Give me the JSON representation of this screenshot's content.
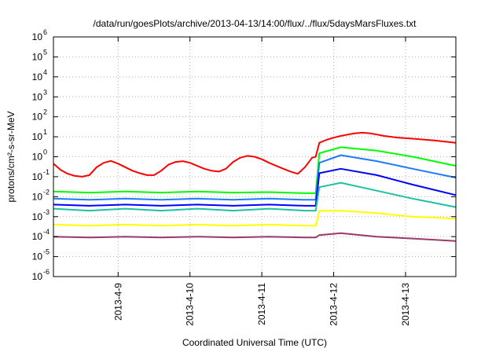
{
  "chart_data": {
    "type": "line",
    "title": "/data/run/goesPlots/archive/2013-04-13/14:00/flux/../flux/5daysMarsFluxes.txt",
    "xlabel": "Coordinated Universal Time (UTC)",
    "ylabel": "protons/cm²-s-sr-MeV",
    "y_scale": "log",
    "ylim": [
      1e-06,
      1000000.0
    ],
    "xlim": [
      0,
      5.6
    ],
    "grid": true,
    "x_ticks": [
      {
        "x": 0.9,
        "label": "2013-4-9"
      },
      {
        "x": 1.9,
        "label": "2013-4-10"
      },
      {
        "x": 2.9,
        "label": "2013-4-11"
      },
      {
        "x": 3.9,
        "label": "2013-4-12"
      },
      {
        "x": 4.9,
        "label": "2013-4-13"
      }
    ],
    "y_ticks": [
      {
        "exp": -6,
        "label": "10",
        "sup": "-6"
      },
      {
        "exp": -5,
        "label": "10",
        "sup": "-5"
      },
      {
        "exp": -4,
        "label": "10",
        "sup": "-4"
      },
      {
        "exp": -3,
        "label": "10",
        "sup": "-3"
      },
      {
        "exp": -2,
        "label": "10",
        "sup": "-2"
      },
      {
        "exp": -1,
        "label": "10",
        "sup": "-1"
      },
      {
        "exp": 0,
        "label": "10",
        "sup": "0"
      },
      {
        "exp": 1,
        "label": "10",
        "sup": "1"
      },
      {
        "exp": 2,
        "label": "10",
        "sup": "2"
      },
      {
        "exp": 3,
        "label": "10",
        "sup": "3"
      },
      {
        "exp": 4,
        "label": "10",
        "sup": "4"
      },
      {
        "exp": 5,
        "label": "10",
        "sup": "5"
      },
      {
        "exp": 6,
        "label": "10",
        "sup": "6"
      }
    ],
    "series": [
      {
        "color": "#ff0000",
        "values": [
          [
            0.0,
            0.45
          ],
          [
            0.1,
            0.22
          ],
          [
            0.2,
            0.14
          ],
          [
            0.3,
            0.11
          ],
          [
            0.4,
            0.1
          ],
          [
            0.5,
            0.12
          ],
          [
            0.6,
            0.3
          ],
          [
            0.7,
            0.5
          ],
          [
            0.8,
            0.62
          ],
          [
            0.9,
            0.45
          ],
          [
            1.0,
            0.3
          ],
          [
            1.1,
            0.2
          ],
          [
            1.2,
            0.15
          ],
          [
            1.3,
            0.12
          ],
          [
            1.4,
            0.12
          ],
          [
            1.5,
            0.2
          ],
          [
            1.6,
            0.4
          ],
          [
            1.7,
            0.55
          ],
          [
            1.8,
            0.6
          ],
          [
            1.9,
            0.5
          ],
          [
            2.0,
            0.35
          ],
          [
            2.1,
            0.25
          ],
          [
            2.2,
            0.2
          ],
          [
            2.3,
            0.18
          ],
          [
            2.4,
            0.25
          ],
          [
            2.5,
            0.55
          ],
          [
            2.6,
            0.9
          ],
          [
            2.7,
            1.1
          ],
          [
            2.8,
            1.0
          ],
          [
            2.9,
            0.75
          ],
          [
            3.0,
            0.5
          ],
          [
            3.1,
            0.35
          ],
          [
            3.2,
            0.25
          ],
          [
            3.3,
            0.18
          ],
          [
            3.4,
            0.14
          ],
          [
            3.5,
            0.3
          ],
          [
            3.6,
            0.9
          ],
          [
            3.65,
            1.0
          ],
          [
            3.7,
            5.0
          ],
          [
            3.8,
            7.0
          ],
          [
            3.9,
            9.0
          ],
          [
            4.0,
            11.0
          ],
          [
            4.1,
            13.0
          ],
          [
            4.2,
            15.0
          ],
          [
            4.3,
            16.0
          ],
          [
            4.4,
            15.0
          ],
          [
            4.5,
            13.0
          ],
          [
            4.6,
            11.0
          ],
          [
            4.7,
            10.0
          ],
          [
            4.8,
            9.0
          ],
          [
            4.9,
            8.5
          ],
          [
            5.0,
            8.0
          ],
          [
            5.1,
            7.5
          ],
          [
            5.2,
            7.0
          ],
          [
            5.3,
            6.5
          ],
          [
            5.4,
            6.0
          ],
          [
            5.5,
            5.5
          ],
          [
            5.6,
            5.0
          ]
        ]
      },
      {
        "color": "#00ff00",
        "values": [
          [
            0.0,
            0.018
          ],
          [
            0.5,
            0.016
          ],
          [
            1.0,
            0.018
          ],
          [
            1.5,
            0.016
          ],
          [
            2.0,
            0.018
          ],
          [
            2.5,
            0.016
          ],
          [
            3.0,
            0.017
          ],
          [
            3.5,
            0.015
          ],
          [
            3.65,
            0.015
          ],
          [
            3.7,
            1.5
          ],
          [
            4.0,
            3.0
          ],
          [
            4.5,
            2.0
          ],
          [
            5.0,
            1.0
          ],
          [
            5.6,
            0.35
          ]
        ]
      },
      {
        "color": "#1e7aff",
        "values": [
          [
            0.0,
            0.008
          ],
          [
            0.5,
            0.007
          ],
          [
            1.0,
            0.008
          ],
          [
            1.5,
            0.007
          ],
          [
            2.0,
            0.008
          ],
          [
            2.5,
            0.007
          ],
          [
            3.0,
            0.008
          ],
          [
            3.5,
            0.007
          ],
          [
            3.65,
            0.007
          ],
          [
            3.7,
            0.5
          ],
          [
            4.0,
            1.2
          ],
          [
            4.5,
            0.6
          ],
          [
            5.0,
            0.25
          ],
          [
            5.6,
            0.09
          ]
        ]
      },
      {
        "color": "#0000ff",
        "values": [
          [
            0.0,
            0.004
          ],
          [
            0.5,
            0.0035
          ],
          [
            1.0,
            0.004
          ],
          [
            1.5,
            0.0035
          ],
          [
            2.0,
            0.004
          ],
          [
            2.5,
            0.0035
          ],
          [
            3.0,
            0.004
          ],
          [
            3.5,
            0.0035
          ],
          [
            3.65,
            0.0035
          ],
          [
            3.7,
            0.15
          ],
          [
            4.0,
            0.25
          ],
          [
            4.5,
            0.12
          ],
          [
            5.0,
            0.04
          ],
          [
            5.6,
            0.012
          ]
        ]
      },
      {
        "color": "#20c0a0",
        "values": [
          [
            0.0,
            0.0025
          ],
          [
            0.5,
            0.002
          ],
          [
            1.0,
            0.0025
          ],
          [
            1.5,
            0.002
          ],
          [
            2.0,
            0.0025
          ],
          [
            2.5,
            0.002
          ],
          [
            3.0,
            0.0025
          ],
          [
            3.5,
            0.002
          ],
          [
            3.65,
            0.002
          ],
          [
            3.7,
            0.03
          ],
          [
            4.0,
            0.05
          ],
          [
            4.5,
            0.02
          ],
          [
            5.0,
            0.008
          ],
          [
            5.6,
            0.003
          ]
        ]
      },
      {
        "color": "#ffff00",
        "values": [
          [
            0.0,
            0.0004
          ],
          [
            0.5,
            0.00035
          ],
          [
            1.0,
            0.0004
          ],
          [
            1.5,
            0.00035
          ],
          [
            2.0,
            0.0004
          ],
          [
            2.5,
            0.00035
          ],
          [
            3.0,
            0.0004
          ],
          [
            3.5,
            0.00035
          ],
          [
            3.65,
            0.00035
          ],
          [
            3.7,
            0.002
          ],
          [
            4.0,
            0.002
          ],
          [
            4.5,
            0.0015
          ],
          [
            5.0,
            0.001
          ],
          [
            5.6,
            0.0008
          ]
        ]
      },
      {
        "color": "#9a3a6a",
        "values": [
          [
            0.0,
            0.0001
          ],
          [
            0.5,
            9e-05
          ],
          [
            1.0,
            0.0001
          ],
          [
            1.5,
            9e-05
          ],
          [
            2.0,
            0.0001
          ],
          [
            2.5,
            9e-05
          ],
          [
            3.0,
            0.0001
          ],
          [
            3.5,
            9e-05
          ],
          [
            3.65,
            9e-05
          ],
          [
            3.7,
            0.00012
          ],
          [
            4.0,
            0.00015
          ],
          [
            4.5,
            0.0001
          ],
          [
            5.0,
            8e-05
          ],
          [
            5.6,
            6e-05
          ]
        ]
      }
    ]
  }
}
